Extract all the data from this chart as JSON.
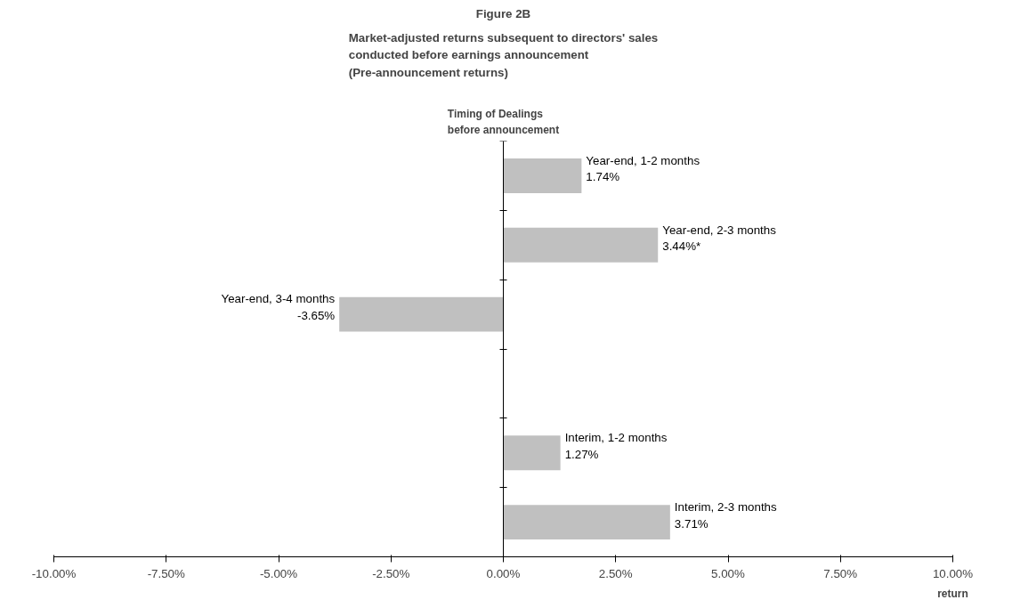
{
  "chart_data": {
    "type": "bar",
    "orientation": "horizontal",
    "title": "Figure 2B",
    "subtitle": "Market-adjusted returns subsequent to directors' sales\nconducted before earnings announcement\n(Pre-announcement returns)",
    "ylabel": "Timing of Dealings\nbefore announcement",
    "xlabel": "return",
    "categories": [
      "Year-end, 1-2 months",
      "Year-end, 2-3 months",
      "Year-end, 3-4 months",
      null,
      "Interim, 1-2 months",
      "Interim, 2-3 months"
    ],
    "values": [
      1.74,
      3.44,
      -3.65,
      null,
      1.27,
      3.71
    ],
    "value_labels": [
      "1.74%",
      "3.44%*",
      "-3.65%",
      null,
      "1.27%",
      "3.71%"
    ],
    "color": "#c0c0c0",
    "xlim": [
      -10,
      10
    ],
    "xticks": [
      {
        "value": -10,
        "label": "-10.00%"
      },
      {
        "value": -7.5,
        "label": "-7.50%"
      },
      {
        "value": -5,
        "label": "-5.00%"
      },
      {
        "value": -2.5,
        "label": "-2.50%"
      },
      {
        "value": 0,
        "label": "0.00%"
      },
      {
        "value": 2.5,
        "label": "2.50%"
      },
      {
        "value": 5,
        "label": "5.00%"
      },
      {
        "value": 7.5,
        "label": "7.50%"
      },
      {
        "value": 10,
        "label": "10.00%"
      }
    ]
  }
}
